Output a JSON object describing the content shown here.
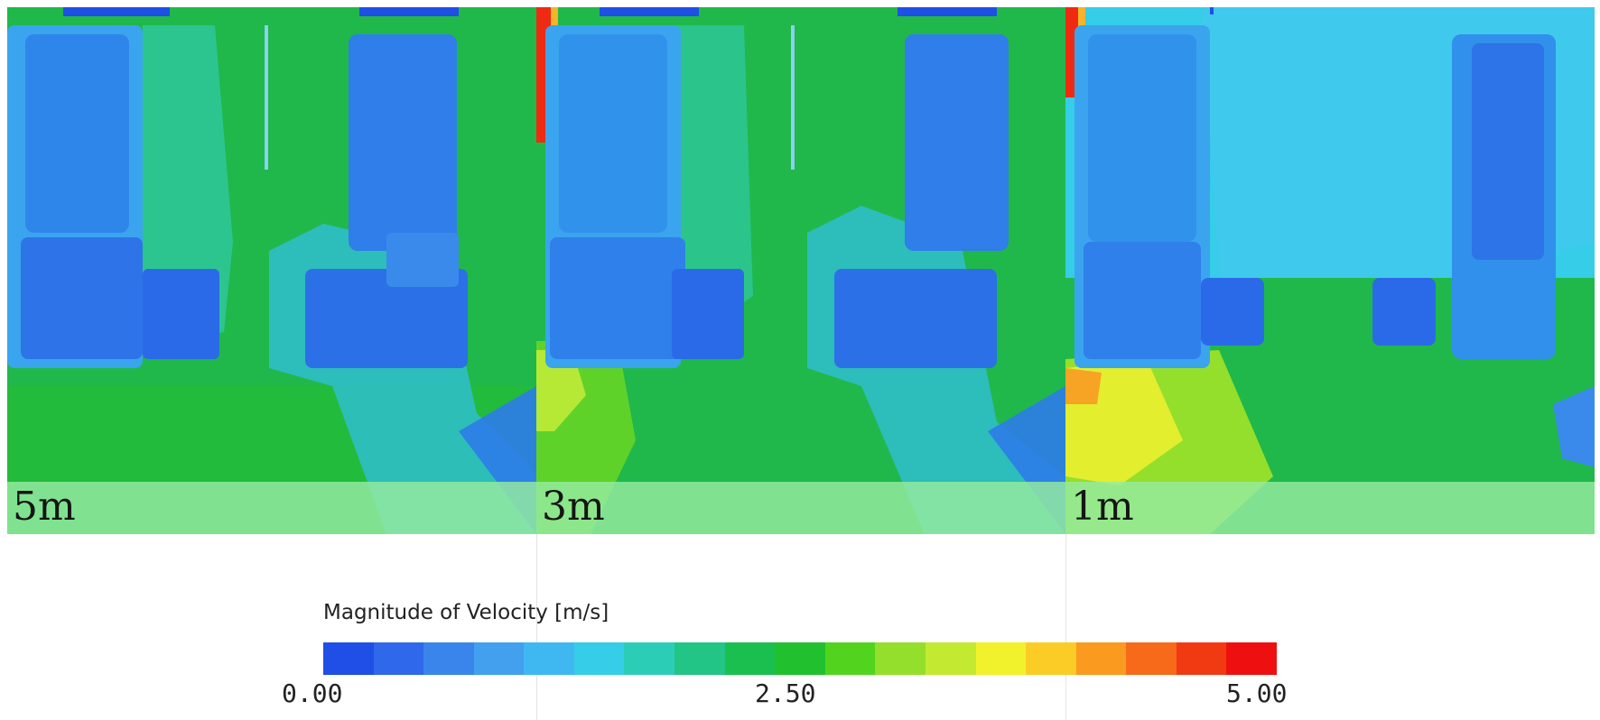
{
  "panels": [
    {
      "label": "5m"
    },
    {
      "label": "3m"
    },
    {
      "label": "1m"
    }
  ],
  "colorbar": {
    "title": "Magnitude of Velocity [m/s]",
    "min_label": "0.00",
    "mid_label": "2.50",
    "max_label": "5.00",
    "min": 0.0,
    "max": 5.0,
    "colors": [
      "#1f4fe6",
      "#2f68ea",
      "#3a85ec",
      "#42a0ef",
      "#3fb8f2",
      "#35cde8",
      "#2ccdb7",
      "#22c585",
      "#1bbf50",
      "#21c02f",
      "#52d41e",
      "#94df2c",
      "#c3ea30",
      "#f2f22c",
      "#fccc26",
      "#fa9a1f",
      "#f76a1a",
      "#f23a12",
      "#ee1010"
    ]
  }
}
